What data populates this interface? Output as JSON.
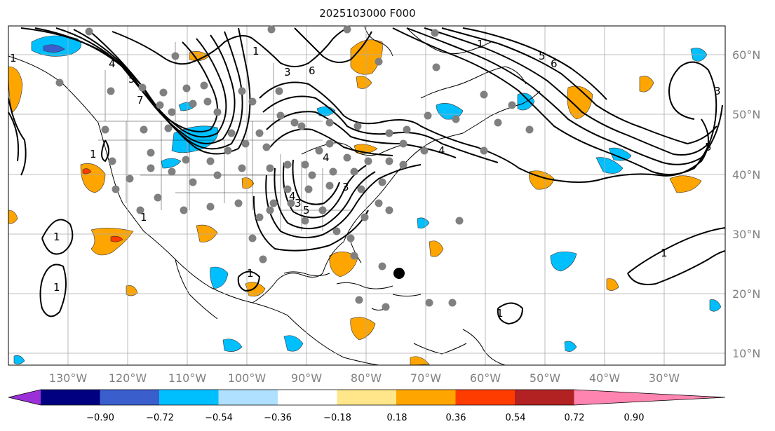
{
  "title": "2025103000 F000",
  "longitude_labels": [
    "130°W",
    "120°W",
    "110°W",
    "100°W",
    "90°W",
    "80°W",
    "70°W",
    "60°W",
    "50°W",
    "40°W",
    "30°W"
  ],
  "latitude_labels": [
    "60°N",
    "50°N",
    "40°N",
    "30°N",
    "20°N",
    "10°N"
  ],
  "colorbar": {
    "tick_labels": [
      "−0.90",
      "−0.72",
      "−0.54",
      "−0.36",
      "−0.18",
      "0.18",
      "0.36",
      "0.54",
      "0.72",
      "0.90"
    ],
    "colors": [
      "#9b30d9",
      "#000080",
      "#3a5fcd",
      "#00bfff",
      "#afe0ff",
      "#ffffff",
      "#ffe68a",
      "#ffa500",
      "#ff3c00",
      "#b22222",
      "#ff85b0"
    ]
  },
  "contour_labels": [
    "1",
    "4",
    "5",
    "6",
    "7",
    "1",
    "3",
    "5",
    "6",
    "1",
    "3",
    "4",
    "4",
    "5",
    "3",
    "1",
    "3",
    "4",
    "5",
    "1",
    "1",
    "1",
    "1",
    "1",
    "1"
  ]
}
